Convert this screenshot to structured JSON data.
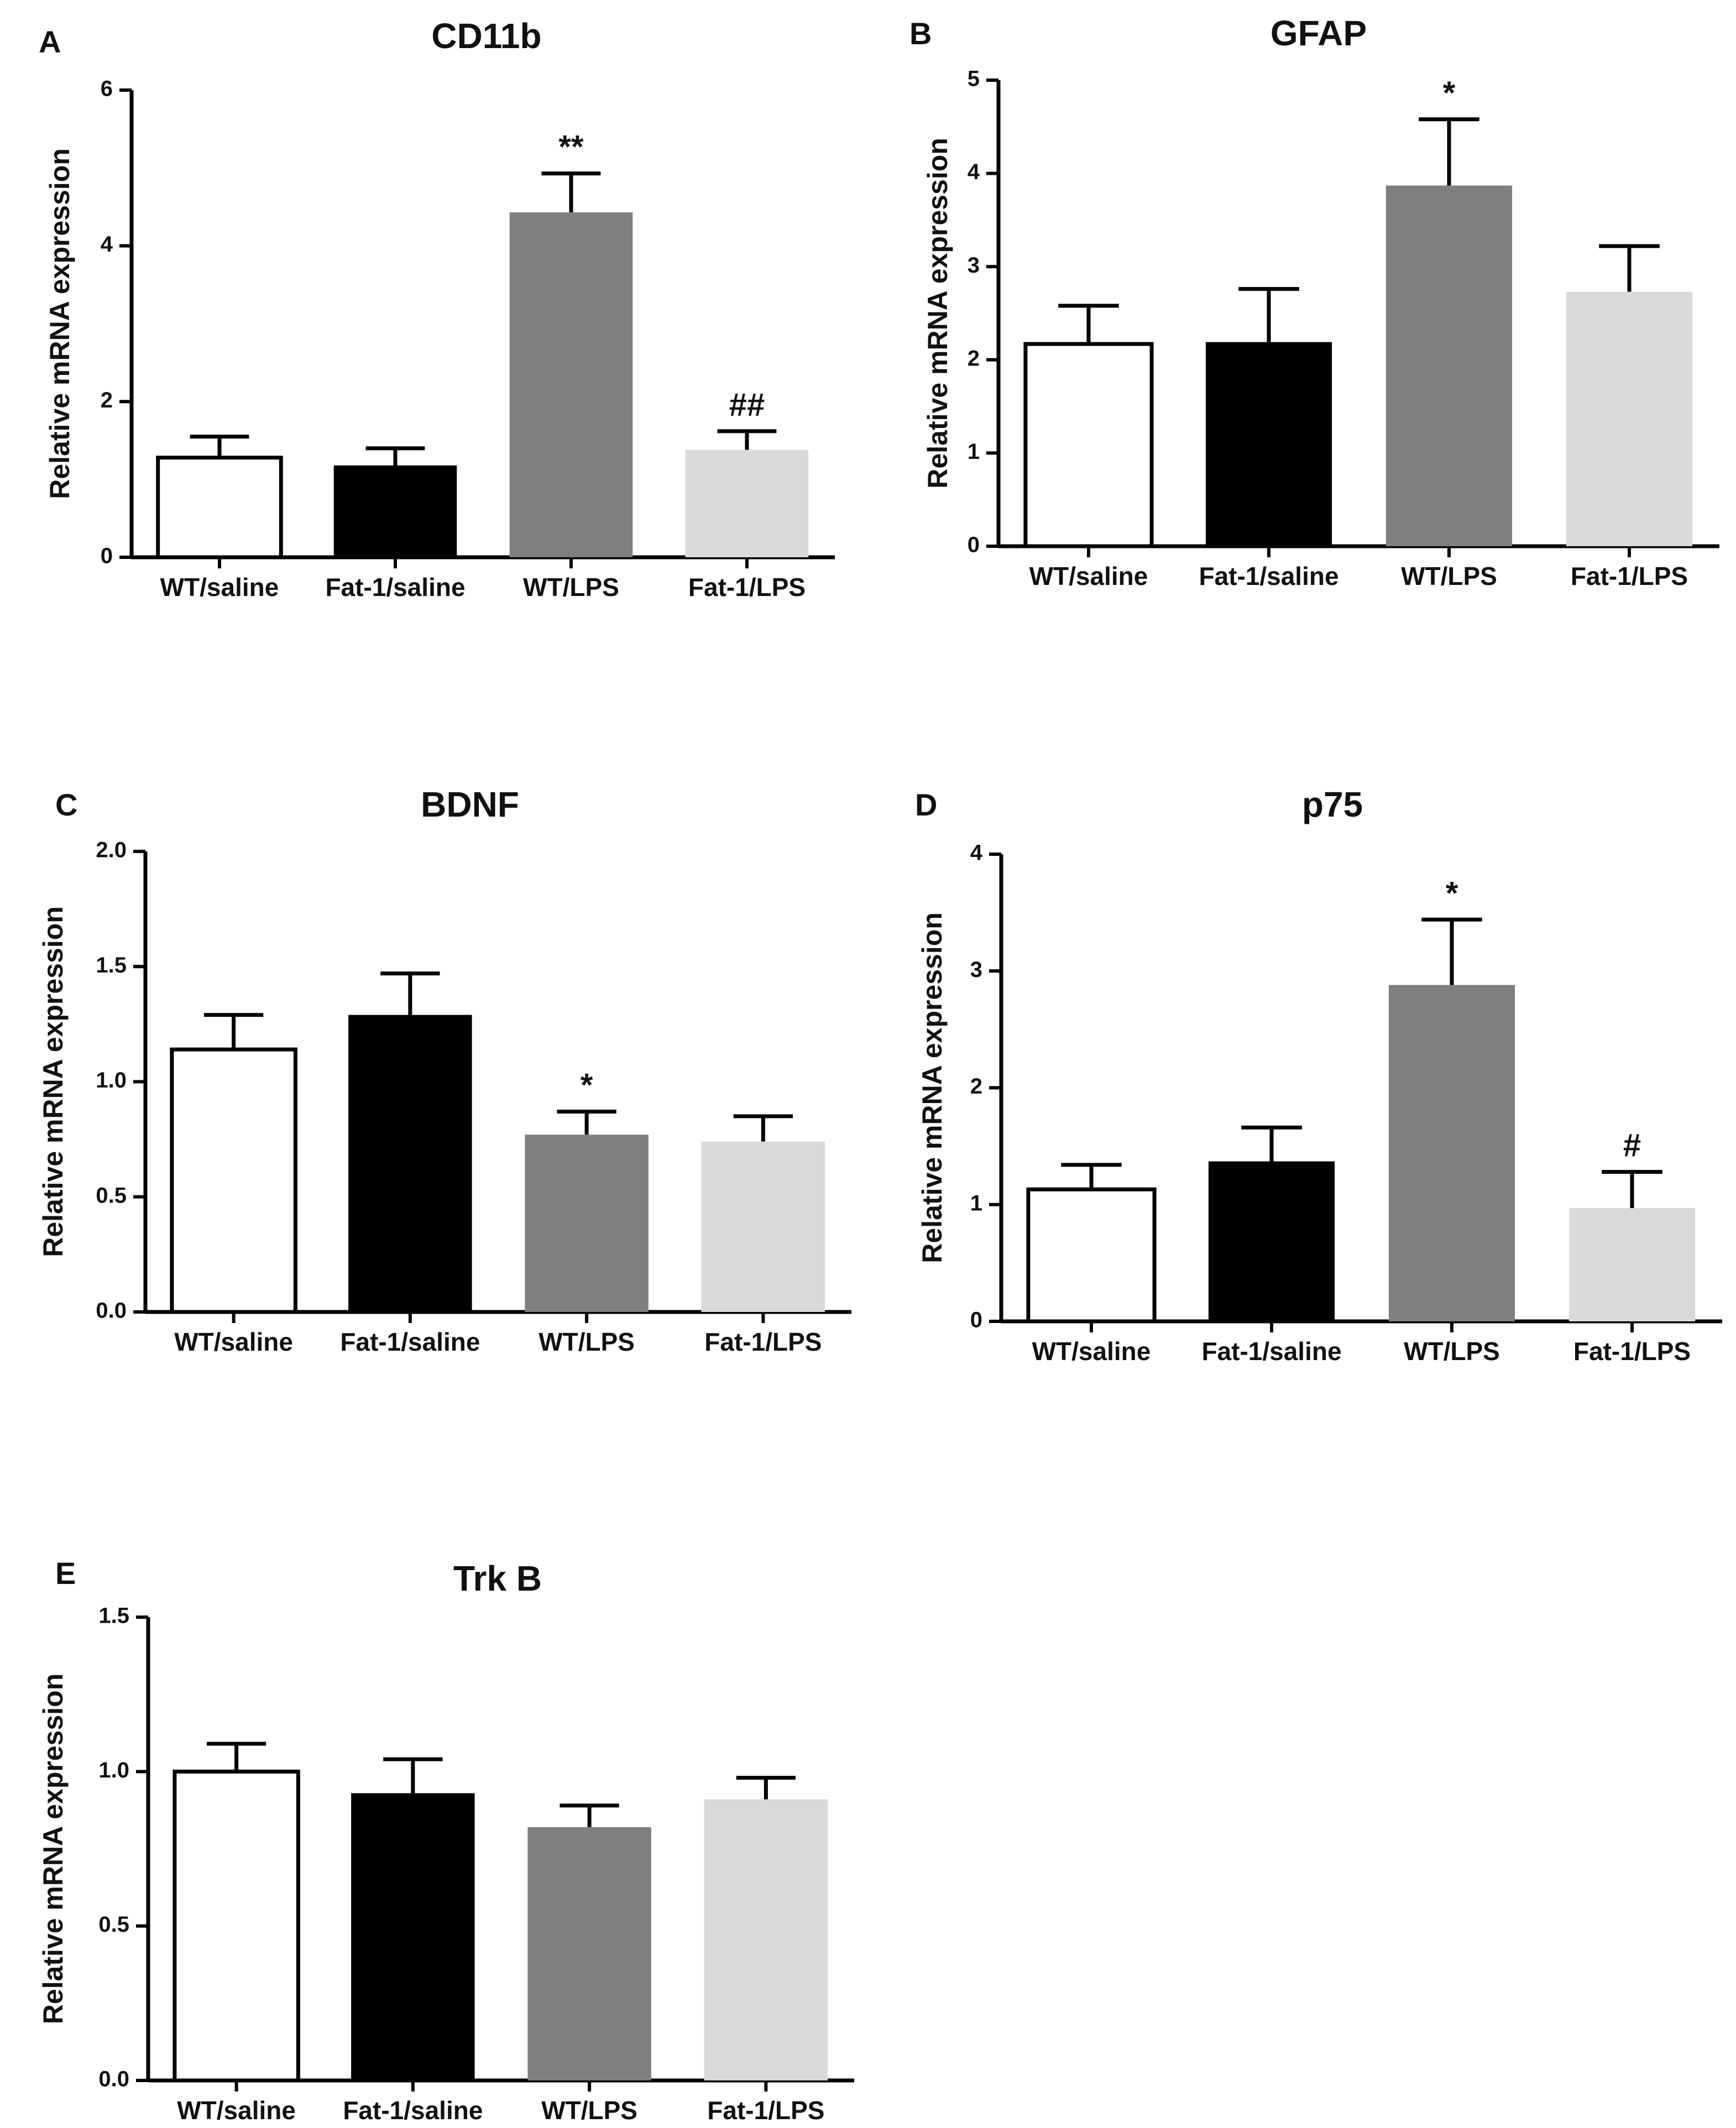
{
  "chart_data": [
    {
      "panel": "A",
      "type": "bar",
      "title": "CD11b",
      "ylabel": "Relative mRNA expression",
      "xlabel": "",
      "categories": [
        "WT/saline",
        "Fat-1/saline",
        "WT/LPS",
        "Fat-1/LPS"
      ],
      "values": [
        1.28,
        1.18,
        4.43,
        1.38
      ],
      "errors": [
        0.27,
        0.22,
        0.5,
        0.24
      ],
      "annotations": [
        "",
        "",
        "**",
        "##"
      ],
      "ylim": [
        0,
        6
      ],
      "yticks": [
        0,
        2,
        4,
        6
      ],
      "ytick_labels": [
        "0",
        "2",
        "4",
        "6"
      ],
      "colors": [
        "#ffffff",
        "#000000",
        "#7f7f7f",
        "#d9d9d9"
      ]
    },
    {
      "panel": "B",
      "type": "bar",
      "title": "GFAP",
      "ylabel": "Relative mRNA expression",
      "xlabel": "",
      "categories": [
        "WT/saline",
        "Fat-1/saline",
        "WT/LPS",
        "Fat-1/LPS"
      ],
      "values": [
        2.17,
        2.19,
        3.87,
        2.73
      ],
      "errors": [
        0.41,
        0.57,
        0.71,
        0.49
      ],
      "annotations": [
        "",
        "",
        "*",
        ""
      ],
      "ylim": [
        0,
        5
      ],
      "yticks": [
        0,
        1,
        2,
        3,
        4,
        5
      ],
      "ytick_labels": [
        "0",
        "1",
        "2",
        "3",
        "4",
        "5"
      ],
      "colors": [
        "#ffffff",
        "#000000",
        "#7f7f7f",
        "#d9d9d9"
      ]
    },
    {
      "panel": "C",
      "type": "bar",
      "title": "BDNF",
      "ylabel": "Relative mRNA expression",
      "xlabel": "",
      "categories": [
        "WT/saline",
        "Fat-1/saline",
        "WT/LPS",
        "Fat-1/LPS"
      ],
      "values": [
        1.14,
        1.29,
        0.77,
        0.74
      ],
      "errors": [
        0.15,
        0.18,
        0.1,
        0.11
      ],
      "annotations": [
        "",
        "",
        "*",
        ""
      ],
      "ylim": [
        0,
        2.0
      ],
      "yticks": [
        0,
        0.5,
        1.0,
        1.5,
        2.0
      ],
      "ytick_labels": [
        "0.0",
        "0.5",
        "1.0",
        "1.5",
        "2.0"
      ],
      "colors": [
        "#ffffff",
        "#000000",
        "#7f7f7f",
        "#d9d9d9"
      ]
    },
    {
      "panel": "D",
      "type": "bar",
      "title": "p75",
      "ylabel": "Relative mRNA expression",
      "xlabel": "",
      "categories": [
        "WT/saline",
        "Fat-1/saline",
        "WT/LPS",
        "Fat-1/LPS"
      ],
      "values": [
        1.13,
        1.37,
        2.88,
        0.97
      ],
      "errors": [
        0.21,
        0.29,
        0.56,
        0.31
      ],
      "annotations": [
        "",
        "",
        "*",
        "#"
      ],
      "ylim": [
        0,
        4
      ],
      "yticks": [
        0,
        1,
        2,
        3,
        4
      ],
      "ytick_labels": [
        "0",
        "1",
        "2",
        "3",
        "4"
      ],
      "colors": [
        "#ffffff",
        "#000000",
        "#7f7f7f",
        "#d9d9d9"
      ]
    },
    {
      "panel": "E",
      "type": "bar",
      "title": "Trk B",
      "ylabel": "Relative mRNA expression",
      "xlabel": "",
      "categories": [
        "WT/saline",
        "Fat-1/saline",
        "WT/LPS",
        "Fat-1/LPS"
      ],
      "values": [
        1.0,
        0.93,
        0.82,
        0.91
      ],
      "errors": [
        0.09,
        0.11,
        0.07,
        0.07
      ],
      "annotations": [
        "",
        "",
        "",
        ""
      ],
      "ylim": [
        0,
        1.5
      ],
      "yticks": [
        0,
        0.5,
        1.0,
        1.5
      ],
      "ytick_labels": [
        "0.0",
        "0.5",
        "1.0",
        "1.5"
      ],
      "colors": [
        "#ffffff",
        "#000000",
        "#7f7f7f",
        "#d9d9d9"
      ]
    }
  ]
}
